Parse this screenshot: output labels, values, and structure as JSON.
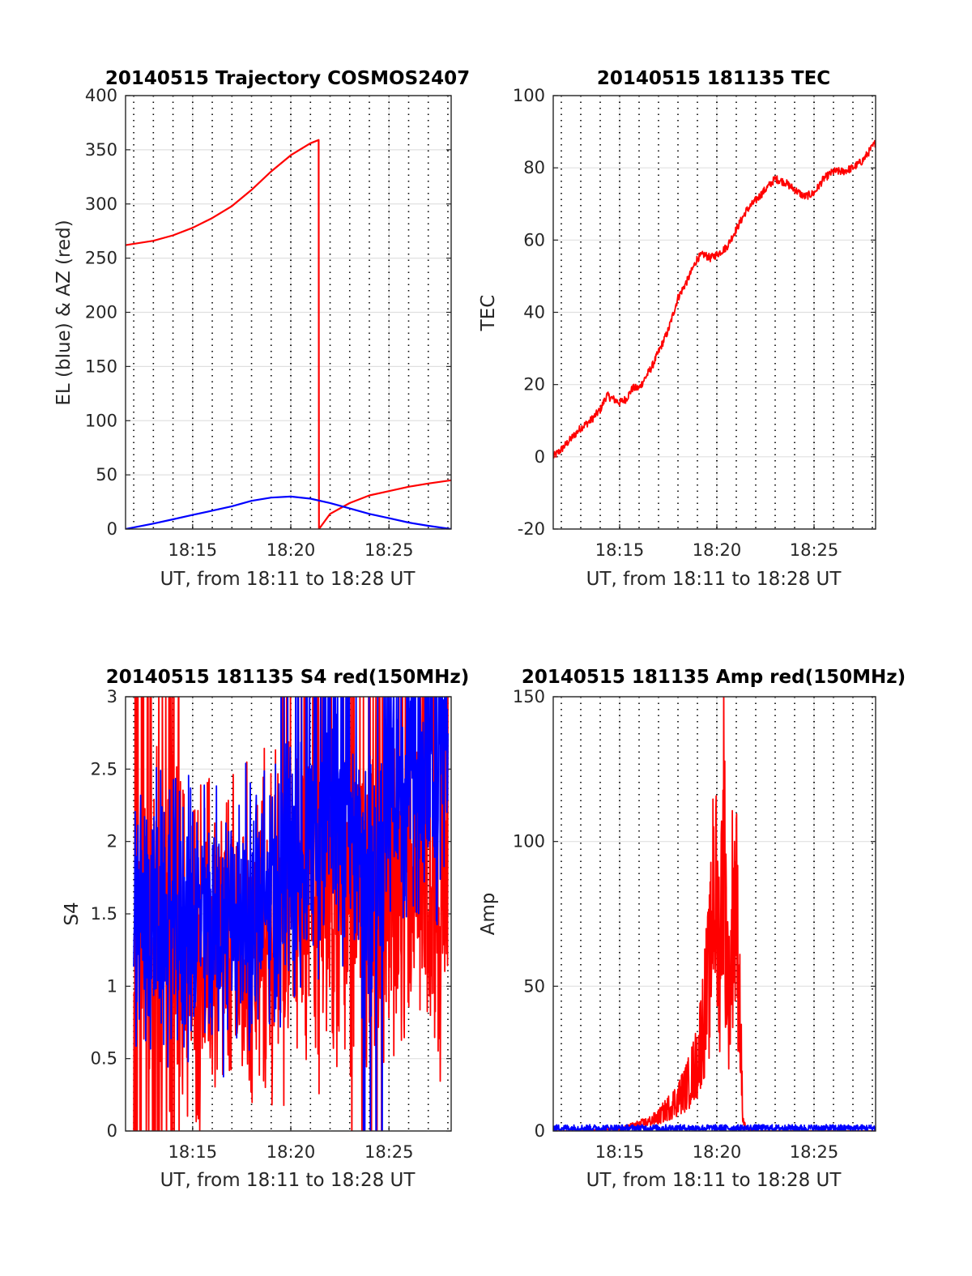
{
  "colors": {
    "az": "#ff0000",
    "el": "#0000ff",
    "s4_red": "#ff0000",
    "s4_blue": "#0000ff",
    "amp_red": "#ff0000",
    "amp_blue": "#0000ff",
    "grid": "#e0e0e0",
    "axis": "#262626"
  },
  "chart_data": [
    {
      "type": "line",
      "title": "20140515 Trajectory COSMOS2407",
      "xlabel": "UT, from 18:11 to 18:28 UT",
      "ylabel": "EL (blue) & AZ (red)",
      "xlim": [
        "18:11:35",
        "18:28:10"
      ],
      "ylim": [
        0,
        400
      ],
      "xticks": [
        "18:15",
        "18:20",
        "18:25"
      ],
      "yticks": [
        "0",
        "50",
        "100",
        "150",
        "200",
        "250",
        "300",
        "350",
        "400"
      ],
      "grid": true,
      "series": [
        {
          "color": "red",
          "x": [
            "18:11:35",
            "18:13:00",
            "18:14:00",
            "18:15:00",
            "18:16:00",
            "18:17:00",
            "18:18:00",
            "18:19:00",
            "18:20:00",
            "18:21:00",
            "18:21:25",
            "18:21:26",
            "18:22:00",
            "18:23:00",
            "18:24:00",
            "18:25:00",
            "18:26:00",
            "18:27:00",
            "18:28:10"
          ],
          "values": [
            262,
            266,
            271,
            278,
            287,
            298,
            313,
            330,
            345,
            356,
            359,
            0,
            14,
            24,
            31,
            35,
            39,
            42,
            45
          ]
        },
        {
          "color": "blue",
          "x": [
            "18:11:35",
            "18:13:00",
            "18:14:00",
            "18:15:00",
            "18:16:00",
            "18:17:00",
            "18:18:00",
            "18:19:00",
            "18:20:00",
            "18:21:00",
            "18:22:00",
            "18:23:00",
            "18:24:00",
            "18:25:00",
            "18:26:00",
            "18:27:00",
            "18:28:10"
          ],
          "values": [
            0,
            5,
            9,
            13,
            17,
            21,
            26,
            29,
            30,
            28,
            24,
            19,
            14,
            10,
            6,
            3,
            0
          ]
        }
      ]
    },
    {
      "type": "line",
      "title": "20140515 181135 TEC",
      "xlabel": "UT, from 18:11 to 18:28 UT",
      "ylabel": "TEC",
      "xlim": [
        "18:11:35",
        "18:28:10"
      ],
      "ylim": [
        -20,
        100
      ],
      "xticks": [
        "18:15",
        "18:20",
        "18:25"
      ],
      "yticks": [
        "-20",
        "0",
        "20",
        "40",
        "60",
        "80",
        "100"
      ],
      "grid": true,
      "series": [
        {
          "color": "red",
          "x": [
            "18:11:35",
            "18:12:00",
            "18:12:30",
            "18:13:00",
            "18:13:30",
            "18:14:00",
            "18:14:20",
            "18:14:40",
            "18:15:00",
            "18:15:20",
            "18:15:40",
            "18:16:00",
            "18:16:20",
            "18:16:40",
            "18:17:00",
            "18:17:30",
            "18:18:00",
            "18:18:30",
            "18:19:00",
            "18:19:20",
            "18:19:40",
            "18:20:00",
            "18:20:30",
            "18:21:00",
            "18:21:30",
            "18:22:00",
            "18:22:30",
            "18:23:00",
            "18:23:30",
            "18:24:00",
            "18:24:30",
            "18:25:00",
            "18:25:30",
            "18:26:00",
            "18:26:30",
            "18:27:00",
            "18:27:30",
            "18:28:10"
          ],
          "values": [
            0,
            2,
            5,
            8,
            10,
            13,
            17,
            16,
            15,
            16,
            19,
            19,
            22,
            25,
            29,
            35,
            44,
            49,
            55,
            56,
            55,
            56,
            58,
            63,
            68,
            71,
            74,
            77,
            76,
            74,
            72,
            73,
            77,
            79,
            79,
            80,
            82,
            87
          ]
        }
      ]
    },
    {
      "type": "line",
      "title": "20140515 181135 S4 red(150MHz)",
      "xlabel": "UT, from 18:11 to 18:28 UT",
      "ylabel": "S4",
      "xlim": [
        "18:11:35",
        "18:28:10"
      ],
      "ylim": [
        0,
        3
      ],
      "xticks": [
        "18:15",
        "18:20",
        "18:25"
      ],
      "yticks": [
        "0",
        "0.5",
        "1",
        "1.5",
        "2",
        "2.5",
        "3"
      ],
      "grid": true,
      "series": [
        {
          "color": "red",
          "x": [
            "18:12:00",
            "18:13:00",
            "18:14:00",
            "18:15:00",
            "18:16:00",
            "18:17:00",
            "18:18:00",
            "18:19:00",
            "18:20:00",
            "18:21:00",
            "18:22:00",
            "18:23:00",
            "18:24:00",
            "18:25:00",
            "18:26:00",
            "18:27:00",
            "18:28:00"
          ],
          "values": [
            1.3,
            1.5,
            1.4,
            1.2,
            1.3,
            1.2,
            1.3,
            1.4,
            1.5,
            1.6,
            1.6,
            1.5,
            1.4,
            1.6,
            1.8,
            1.7,
            1.5
          ]
        },
        {
          "color": "blue",
          "x": [
            "18:12:00",
            "18:13:00",
            "18:14:00",
            "18:15:00",
            "18:16:00",
            "18:17:00",
            "18:18:00",
            "18:19:00",
            "18:20:00",
            "18:21:00",
            "18:22:00",
            "18:23:00",
            "18:24:00",
            "18:25:00",
            "18:26:00",
            "18:27:00",
            "18:28:00"
          ],
          "values": [
            1.4,
            1.5,
            1.4,
            1.5,
            1.4,
            1.5,
            1.5,
            1.6,
            1.8,
            2.0,
            2.1,
            2.0,
            1.8,
            2.2,
            2.3,
            2.4,
            2.5
          ]
        }
      ]
    },
    {
      "type": "line",
      "title": "20140515 181135 Amp red(150MHz)",
      "xlabel": "UT, from 18:11 to 18:28 UT",
      "ylabel": "Amp",
      "xlim": [
        "18:11:35",
        "18:28:10"
      ],
      "ylim": [
        0,
        150
      ],
      "xticks": [
        "18:15",
        "18:20",
        "18:25"
      ],
      "yticks": [
        "0",
        "50",
        "100",
        "150"
      ],
      "grid": true,
      "series": [
        {
          "color": "red",
          "x": [
            "18:11:35",
            "18:13:00",
            "18:14:00",
            "18:15:00",
            "18:15:30",
            "18:16:00",
            "18:16:30",
            "18:17:00",
            "18:17:30",
            "18:18:00",
            "18:18:30",
            "18:19:00",
            "18:19:20",
            "18:19:40",
            "18:19:50",
            "18:20:00",
            "18:20:10",
            "18:20:20",
            "18:20:30",
            "18:20:40",
            "18:20:50",
            "18:21:00",
            "18:21:10",
            "18:21:20",
            "18:21:30",
            "18:22:00",
            "18:25:00",
            "18:28:10"
          ],
          "values": [
            0,
            0,
            0.5,
            1,
            2,
            3,
            4,
            6,
            10,
            14,
            20,
            30,
            50,
            70,
            117,
            90,
            75,
            140,
            80,
            50,
            105,
            95,
            60,
            5,
            1,
            0,
            0,
            0
          ]
        },
        {
          "color": "blue",
          "x": [
            "18:11:35",
            "18:15:00",
            "18:20:00",
            "18:25:00",
            "18:28:10"
          ],
          "values": [
            1,
            1,
            1,
            1,
            1
          ]
        }
      ]
    }
  ]
}
